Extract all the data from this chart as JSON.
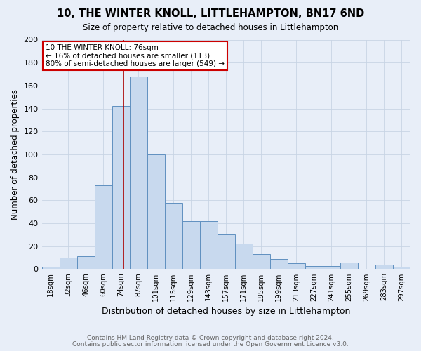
{
  "title": "10, THE WINTER KNOLL, LITTLEHAMPTON, BN17 6ND",
  "subtitle": "Size of property relative to detached houses in Littlehampton",
  "xlabel": "Distribution of detached houses by size in Littlehampton",
  "ylabel": "Number of detached properties",
  "categories": [
    "18sqm",
    "32sqm",
    "46sqm",
    "60sqm",
    "74sqm",
    "87sqm",
    "101sqm",
    "115sqm",
    "129sqm",
    "143sqm",
    "157sqm",
    "171sqm",
    "185sqm",
    "199sqm",
    "213sqm",
    "227sqm",
    "241sqm",
    "255sqm",
    "269sqm",
    "283sqm",
    "297sqm"
  ],
  "values": [
    2,
    10,
    11,
    73,
    142,
    168,
    100,
    58,
    42,
    42,
    30,
    22,
    13,
    9,
    5,
    3,
    3,
    6,
    0,
    4,
    2
  ],
  "bar_color": "#c8d9ee",
  "bar_edge_color": "#6090c0",
  "background_color": "#e8eef8",
  "grid_color": "#d0d8e8",
  "property_line_x": 76,
  "annotation_text": "10 THE WINTER KNOLL: 76sqm\n← 16% of detached houses are smaller (113)\n80% of semi-detached houses are larger (549) →",
  "annotation_box_color": "#ffffff",
  "annotation_box_edge": "#cc0000",
  "red_line_color": "#aa0000",
  "footer1": "Contains HM Land Registry data © Crown copyright and database right 2024.",
  "footer2": "Contains public sector information licensed under the Open Government Licence v3.0.",
  "ylim": [
    0,
    200
  ],
  "yticks": [
    0,
    20,
    40,
    60,
    80,
    100,
    120,
    140,
    160,
    180,
    200
  ],
  "bin_edges": [
    11,
    25,
    39,
    53,
    67,
    81,
    95,
    109,
    123,
    137,
    151,
    165,
    179,
    193,
    207,
    221,
    235,
    249,
    263,
    277,
    291,
    305
  ]
}
